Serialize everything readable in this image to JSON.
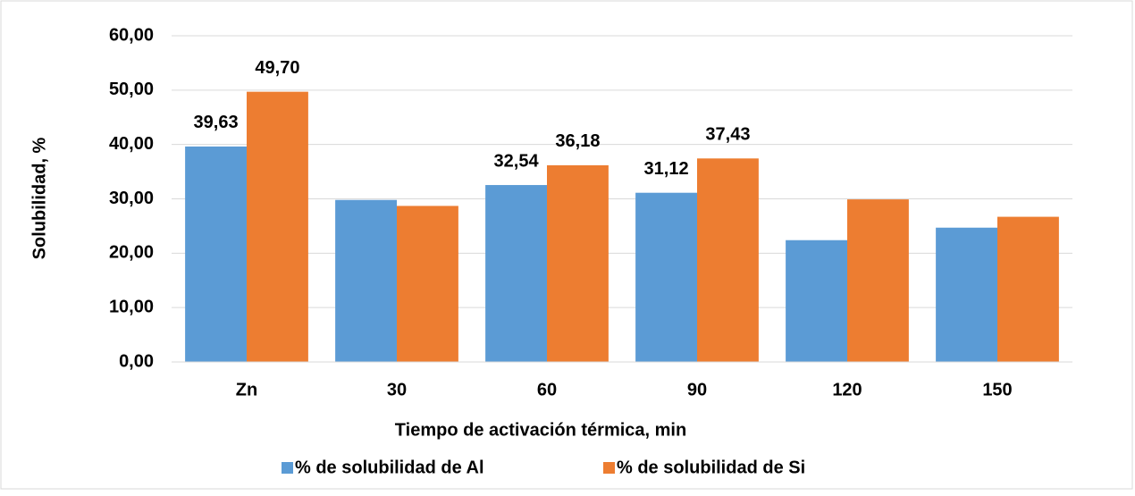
{
  "chart_data": {
    "type": "bar",
    "x_label": "Tiempo de activación térmica, min",
    "y_label": "Solubilidad, %",
    "categories": [
      "Zn",
      "30",
      "60",
      "90",
      "120",
      "150"
    ],
    "series": [
      {
        "name": "% de solubilidad de Al",
        "color": "#5b9bd5",
        "values": [
          39.63,
          29.8,
          32.54,
          31.12,
          22.4,
          24.7
        ],
        "value_labels": [
          "39,63",
          null,
          "32,54",
          "31,12",
          null,
          null
        ]
      },
      {
        "name": "% de solubilidad de Si",
        "color": "#ed7d31",
        "values": [
          49.7,
          28.7,
          36.18,
          37.43,
          29.9,
          26.7
        ],
        "value_labels": [
          "49,70",
          null,
          "36,18",
          "37,43",
          null,
          null
        ]
      }
    ],
    "ylim": [
      0,
      60
    ],
    "yticks": [
      {
        "value": 0,
        "label": "0,00"
      },
      {
        "value": 10,
        "label": "10,00"
      },
      {
        "value": 20,
        "label": "20,00"
      },
      {
        "value": 30,
        "label": "30,00"
      },
      {
        "value": 40,
        "label": "40,00"
      },
      {
        "value": 50,
        "label": "50,00"
      },
      {
        "value": 60,
        "label": "60,00"
      }
    ],
    "grid": true,
    "legend": "bottom"
  }
}
